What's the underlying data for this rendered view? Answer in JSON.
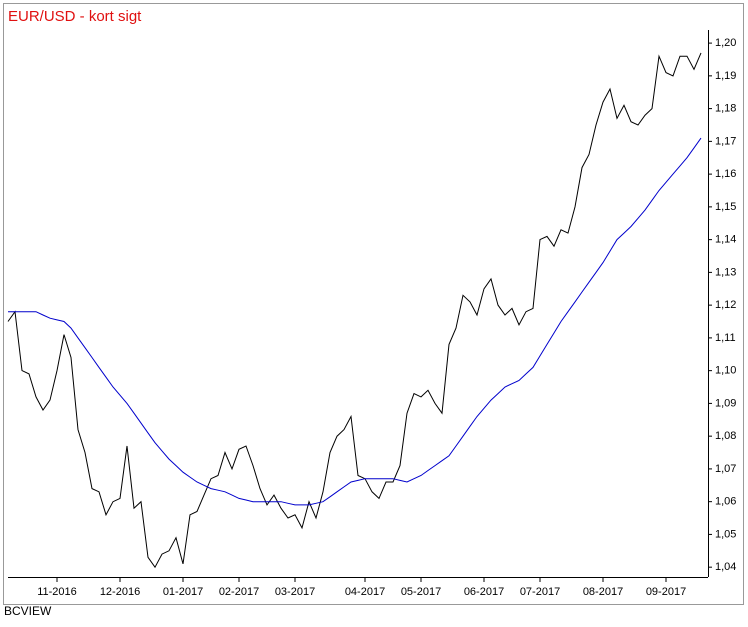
{
  "chart_data": {
    "type": "line",
    "title": "EUR/USD - kort sigt",
    "source": "BCVIEW",
    "categories": [
      null,
      null,
      null,
      null,
      null,
      null,
      null,
      "11-2016",
      null,
      null,
      null,
      null,
      null,
      null,
      null,
      null,
      "12-2016",
      null,
      null,
      null,
      null,
      null,
      null,
      null,
      null,
      "01-2017",
      null,
      null,
      null,
      null,
      null,
      null,
      null,
      "02-2017",
      null,
      null,
      null,
      null,
      null,
      null,
      null,
      "03-2017",
      null,
      null,
      null,
      null,
      null,
      null,
      null,
      null,
      null,
      "04-2017",
      null,
      null,
      null,
      null,
      null,
      null,
      null,
      "05-2017",
      null,
      null,
      null,
      null,
      null,
      null,
      null,
      null,
      "06-2017",
      null,
      null,
      null,
      null,
      null,
      null,
      null,
      "07-2017",
      null,
      null,
      null,
      null,
      null,
      null,
      null,
      null,
      "08-2017",
      null,
      null,
      null,
      null,
      null,
      null,
      null,
      null,
      "09-2017",
      null,
      null,
      null,
      null,
      null
    ],
    "series": [
      {
        "color": "#000000",
        "values": [
          1.115,
          1.118,
          1.1,
          1.099,
          1.092,
          1.088,
          1.091,
          1.1,
          1.111,
          1.104,
          1.082,
          1.075,
          1.064,
          1.063,
          1.056,
          1.06,
          1.061,
          1.077,
          1.058,
          1.06,
          1.043,
          1.04,
          1.044,
          1.045,
          1.049,
          1.041,
          1.056,
          1.057,
          1.062,
          1.067,
          1.068,
          1.075,
          1.07,
          1.076,
          1.077,
          1.071,
          1.064,
          1.059,
          1.062,
          1.058,
          1.055,
          1.056,
          1.052,
          1.06,
          1.055,
          1.063,
          1.075,
          1.08,
          1.082,
          1.086,
          1.068,
          1.067,
          1.063,
          1.061,
          1.066,
          1.066,
          1.071,
          1.087,
          1.093,
          1.092,
          1.094,
          1.09,
          1.087,
          1.108,
          1.113,
          1.123,
          1.121,
          1.117,
          1.125,
          1.128,
          1.12,
          1.117,
          1.119,
          1.114,
          1.118,
          1.119,
          1.14,
          1.141,
          1.138,
          1.143,
          1.142,
          1.15,
          1.162,
          1.166,
          1.175,
          1.182,
          1.186,
          1.177,
          1.181,
          1.176,
          1.175,
          1.178,
          1.18,
          1.196,
          1.191,
          1.19,
          1.196,
          1.196,
          1.192,
          1.197
        ]
      },
      {
        "color": "#0000cc",
        "values": [
          1.118,
          1.118,
          1.118,
          1.118,
          1.118,
          1.117,
          1.116,
          1.1155,
          1.115,
          1.113,
          1.11,
          1.107,
          1.104,
          1.101,
          1.098,
          1.095,
          1.0925,
          1.09,
          1.087,
          1.084,
          1.081,
          1.078,
          1.0755,
          1.073,
          1.071,
          1.069,
          1.0675,
          1.066,
          1.065,
          1.064,
          1.0635,
          1.063,
          1.062,
          1.061,
          1.0605,
          1.06,
          1.06,
          1.06,
          1.06,
          1.06,
          1.0595,
          1.059,
          1.059,
          1.059,
          1.0595,
          1.06,
          1.0615,
          1.063,
          1.0645,
          1.066,
          1.0665,
          1.067,
          1.067,
          1.067,
          1.067,
          1.067,
          1.0665,
          1.066,
          1.067,
          1.068,
          1.0695,
          1.071,
          1.0725,
          1.074,
          1.077,
          1.08,
          1.083,
          1.086,
          1.0885,
          1.091,
          1.093,
          1.095,
          1.096,
          1.097,
          1.099,
          1.101,
          1.1045,
          1.108,
          1.1115,
          1.115,
          1.118,
          1.121,
          1.124,
          1.127,
          1.13,
          1.133,
          1.1365,
          1.14,
          1.142,
          1.144,
          1.1465,
          1.149,
          1.152,
          1.155,
          1.1575,
          1.16,
          1.1625,
          1.165,
          1.168,
          1.171
        ]
      }
    ],
    "ylim": [
      1.037,
      1.204
    ],
    "yticks": [
      {
        "value": 1.04,
        "label": "1,04"
      },
      {
        "value": 1.05,
        "label": "1,05"
      },
      {
        "value": 1.06,
        "label": "1,06"
      },
      {
        "value": 1.07,
        "label": "1,07"
      },
      {
        "value": 1.08,
        "label": "1,08"
      },
      {
        "value": 1.09,
        "label": "1,09"
      },
      {
        "value": 1.1,
        "label": "1,10"
      },
      {
        "value": 1.11,
        "label": "1,11"
      },
      {
        "value": 1.12,
        "label": "1,12"
      },
      {
        "value": 1.13,
        "label": "1,13"
      },
      {
        "value": 1.14,
        "label": "1,14"
      },
      {
        "value": 1.15,
        "label": "1,15"
      },
      {
        "value": 1.16,
        "label": "1,16"
      },
      {
        "value": 1.17,
        "label": "1,17"
      },
      {
        "value": 1.18,
        "label": "1,18"
      },
      {
        "value": 1.19,
        "label": "1,19"
      },
      {
        "value": 1.2,
        "label": "1,20"
      }
    ]
  }
}
